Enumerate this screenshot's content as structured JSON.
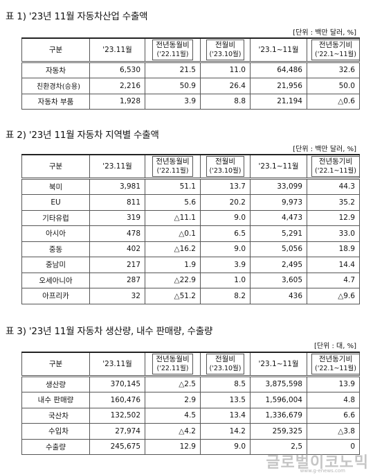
{
  "headers": {
    "gubun": "구분",
    "cur": "'23.11월",
    "yoy": "전년동월비",
    "yoy_sub": "('22.11월)",
    "mom": "전월비",
    "mom_sub": "('23.10월)",
    "ytd": "'23.1~11월",
    "ytd_yoy": "전년동기비",
    "ytd_yoy_sub": "('22.1~11월)"
  },
  "table1": {
    "title": "표 1) '23년 11월 자동차산업 수출액",
    "unit": "[단위 : 백만 달러, %]",
    "rows": [
      {
        "label": "자동차",
        "cur": "6,530",
        "yoy": "21.5",
        "mom": "11.0",
        "ytd": "64,486",
        "ytd_yoy": "32.6"
      },
      {
        "label": "친환경차(승용)",
        "cur": "2,216",
        "yoy": "50.9",
        "mom": "26.4",
        "ytd": "21,956",
        "ytd_yoy": "50.0"
      },
      {
        "label": "자동차 부품",
        "cur": "1,928",
        "yoy": "3.9",
        "mom": "8.8",
        "ytd": "21,194",
        "ytd_yoy": "△0.6"
      }
    ]
  },
  "table2": {
    "title": "표 2) '23년 11월 자동차 지역별 수출액",
    "unit": "[단위 : 백만 달러, %]",
    "rows": [
      {
        "label": "북미",
        "cur": "3,981",
        "yoy": "51.1",
        "mom": "13.7",
        "ytd": "33,099",
        "ytd_yoy": "44.3"
      },
      {
        "label": "EU",
        "cur": "811",
        "yoy": "5.6",
        "mom": "20.2",
        "ytd": "9,973",
        "ytd_yoy": "35.2"
      },
      {
        "label": "기타유럽",
        "cur": "319",
        "yoy": "△11.1",
        "mom": "9.0",
        "ytd": "4,473",
        "ytd_yoy": "12.9"
      },
      {
        "label": "아시아",
        "cur": "478",
        "yoy": "△0.1",
        "mom": "6.5",
        "ytd": "5,291",
        "ytd_yoy": "33.0"
      },
      {
        "label": "중동",
        "cur": "402",
        "yoy": "△16.2",
        "mom": "9.0",
        "ytd": "5,056",
        "ytd_yoy": "18.9"
      },
      {
        "label": "중남미",
        "cur": "217",
        "yoy": "1.9",
        "mom": "3.9",
        "ytd": "2,495",
        "ytd_yoy": "14.4"
      },
      {
        "label": "오세아니아",
        "cur": "287",
        "yoy": "△22.9",
        "mom": "1.0",
        "ytd": "3,605",
        "ytd_yoy": "4.7"
      },
      {
        "label": "아프리카",
        "cur": "32",
        "yoy": "△51.2",
        "mom": "8.2",
        "ytd": "436",
        "ytd_yoy": "△9.6"
      }
    ]
  },
  "table3": {
    "title": "표 3) '23년 11월 자동차 생산량, 내수 판매량, 수출량",
    "unit": "[단위 : 대, %]",
    "rows": [
      {
        "label": "생산량",
        "cur": "370,145",
        "yoy": "△2.5",
        "mom": "8.5",
        "ytd": "3,875,598",
        "ytd_yoy": "13.9"
      },
      {
        "label": "내수 판매량",
        "cur": "160,476",
        "yoy": "2.9",
        "mom": "13.5",
        "ytd": "1,596,004",
        "ytd_yoy": "4.8"
      },
      {
        "label": "국산차",
        "cur": "132,502",
        "yoy": "4.5",
        "mom": "13.4",
        "ytd": "1,336,679",
        "ytd_yoy": "6.6"
      },
      {
        "label": "수입차",
        "cur": "27,974",
        "yoy": "△4.2",
        "mom": "14.2",
        "ytd": "259,325",
        "ytd_yoy": "△3.8"
      },
      {
        "label": "수출량",
        "cur": "245,675",
        "yoy": "12.9",
        "mom": "9.0",
        "ytd": "2,5",
        "ytd_yoy": "0"
      }
    ]
  },
  "watermark": "글로벌이코노믹",
  "watermark_url": "www.g-enews.com"
}
